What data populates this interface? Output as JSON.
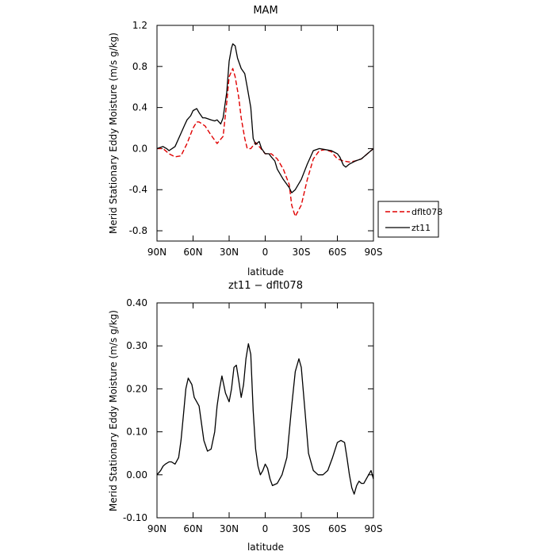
{
  "chart_data": [
    {
      "type": "line",
      "title": "MAM",
      "xlabel": "latitude",
      "ylabel": "Merid Stationary Eddy Moisture (m/s g/kg)",
      "xlim": [
        90,
        -90
      ],
      "ylim": [
        -0.9,
        1.2
      ],
      "x_ticks": [
        90,
        60,
        30,
        0,
        -30,
        -60,
        -90
      ],
      "x_tick_labels": [
        "90N",
        "60N",
        "30N",
        "0",
        "30S",
        "60S",
        "90S"
      ],
      "y_ticks": [
        1.2,
        0.8,
        0.4,
        0.0,
        -0.4,
        -0.8
      ],
      "y_tick_labels": [
        "1.2",
        "0.8",
        "0.4",
        "0.0",
        "-0.4",
        "-0.8"
      ],
      "legend_position": "right",
      "series": [
        {
          "name": "dflt078",
          "color": "#e00000",
          "dashed": true,
          "x": [
            90,
            85,
            80,
            75,
            70,
            65,
            60,
            57,
            55,
            50,
            45,
            40,
            35,
            32,
            30,
            27,
            25,
            22,
            20,
            17,
            15,
            12,
            10,
            8,
            5,
            0,
            -5,
            -10,
            -15,
            -20,
            -22,
            -25,
            -30,
            -35,
            -40,
            -45,
            -50,
            -55,
            -60,
            -65,
            -70,
            -75,
            -80,
            -85,
            -90
          ],
          "y": [
            0.0,
            0.0,
            -0.05,
            -0.08,
            -0.07,
            0.05,
            0.2,
            0.26,
            0.26,
            0.22,
            0.13,
            0.05,
            0.12,
            0.45,
            0.7,
            0.78,
            0.7,
            0.5,
            0.3,
            0.1,
            0.0,
            0.0,
            0.03,
            0.06,
            0.02,
            -0.05,
            -0.05,
            -0.1,
            -0.2,
            -0.35,
            -0.55,
            -0.66,
            -0.55,
            -0.3,
            -0.1,
            -0.02,
            -0.01,
            -0.03,
            -0.1,
            -0.12,
            -0.13,
            -0.12,
            -0.1,
            -0.05,
            0.0
          ]
        },
        {
          "name": "zt11",
          "color": "#000000",
          "dashed": false,
          "x": [
            90,
            85,
            82,
            80,
            75,
            70,
            67,
            65,
            62,
            60,
            57,
            55,
            52,
            50,
            45,
            42,
            40,
            37,
            35,
            32,
            30,
            28,
            27,
            25,
            23,
            20,
            17,
            15,
            12,
            10,
            8,
            5,
            3,
            0,
            -3,
            -5,
            -8,
            -10,
            -15,
            -20,
            -22,
            -25,
            -30,
            -35,
            -40,
            -45,
            -50,
            -55,
            -60,
            -62,
            -65,
            -67,
            -70,
            -75,
            -80,
            -85,
            -90
          ],
          "y": [
            0.0,
            0.02,
            0.0,
            -0.02,
            0.02,
            0.15,
            0.23,
            0.28,
            0.32,
            0.37,
            0.39,
            0.35,
            0.3,
            0.3,
            0.28,
            0.27,
            0.28,
            0.24,
            0.3,
            0.55,
            0.85,
            0.98,
            1.02,
            1.0,
            0.88,
            0.78,
            0.73,
            0.6,
            0.4,
            0.1,
            0.04,
            0.07,
            0.0,
            -0.05,
            -0.05,
            -0.08,
            -0.12,
            -0.2,
            -0.3,
            -0.38,
            -0.43,
            -0.4,
            -0.3,
            -0.15,
            -0.02,
            0.0,
            -0.01,
            -0.02,
            -0.05,
            -0.08,
            -0.16,
            -0.18,
            -0.15,
            -0.12,
            -0.1,
            -0.05,
            0.0
          ]
        }
      ]
    },
    {
      "type": "line",
      "title": "zt11 − dflt078",
      "xlabel": "latitude",
      "ylabel": "Merid Stationary Eddy Moisture (m/s g/kg)",
      "xlim": [
        90,
        -90
      ],
      "ylim": [
        -0.1,
        0.4
      ],
      "x_ticks": [
        90,
        60,
        30,
        0,
        -30,
        -60,
        -90
      ],
      "x_tick_labels": [
        "90N",
        "60N",
        "30N",
        "0",
        "30S",
        "60S",
        "90S"
      ],
      "y_ticks": [
        0.4,
        0.3,
        0.2,
        0.1,
        0.0,
        -0.1
      ],
      "y_tick_labels": [
        "0.40",
        "0.30",
        "0.20",
        "0.10",
        "0.00",
        "-0.10"
      ],
      "series": [
        {
          "color": "#000000",
          "dashed": false,
          "x": [
            90,
            87,
            85,
            83,
            80,
            78,
            75,
            72,
            70,
            68,
            66,
            64,
            61,
            59,
            57,
            55,
            51,
            48,
            45,
            42,
            40,
            38,
            36,
            33,
            30,
            28,
            26,
            24,
            22,
            20,
            18,
            16,
            14,
            12,
            10,
            8,
            6,
            4,
            2,
            0,
            -2,
            -4,
            -6,
            -10,
            -14,
            -18,
            -22,
            -25,
            -28,
            -30,
            -33,
            -36,
            -40,
            -44,
            -48,
            -52,
            -56,
            -60,
            -63,
            -66,
            -68,
            -70,
            -72,
            -74,
            -76,
            -78,
            -80,
            -82,
            -84,
            -86,
            -88,
            -90
          ],
          "y": [
            0.0,
            0.01,
            0.02,
            0.025,
            0.03,
            0.03,
            0.025,
            0.04,
            0.08,
            0.14,
            0.2,
            0.225,
            0.21,
            0.18,
            0.17,
            0.16,
            0.08,
            0.055,
            0.06,
            0.1,
            0.16,
            0.2,
            0.23,
            0.19,
            0.17,
            0.2,
            0.25,
            0.255,
            0.22,
            0.18,
            0.21,
            0.27,
            0.305,
            0.28,
            0.15,
            0.06,
            0.02,
            0.0,
            0.01,
            0.025,
            0.015,
            -0.01,
            -0.025,
            -0.02,
            0.0,
            0.04,
            0.16,
            0.24,
            0.27,
            0.25,
            0.15,
            0.05,
            0.01,
            0.0,
            0.0,
            0.01,
            0.04,
            0.075,
            0.08,
            0.075,
            0.04,
            0.0,
            -0.03,
            -0.045,
            -0.025,
            -0.015,
            -0.02,
            -0.02,
            -0.01,
            0.0,
            0.01,
            -0.01
          ]
        }
      ]
    }
  ]
}
